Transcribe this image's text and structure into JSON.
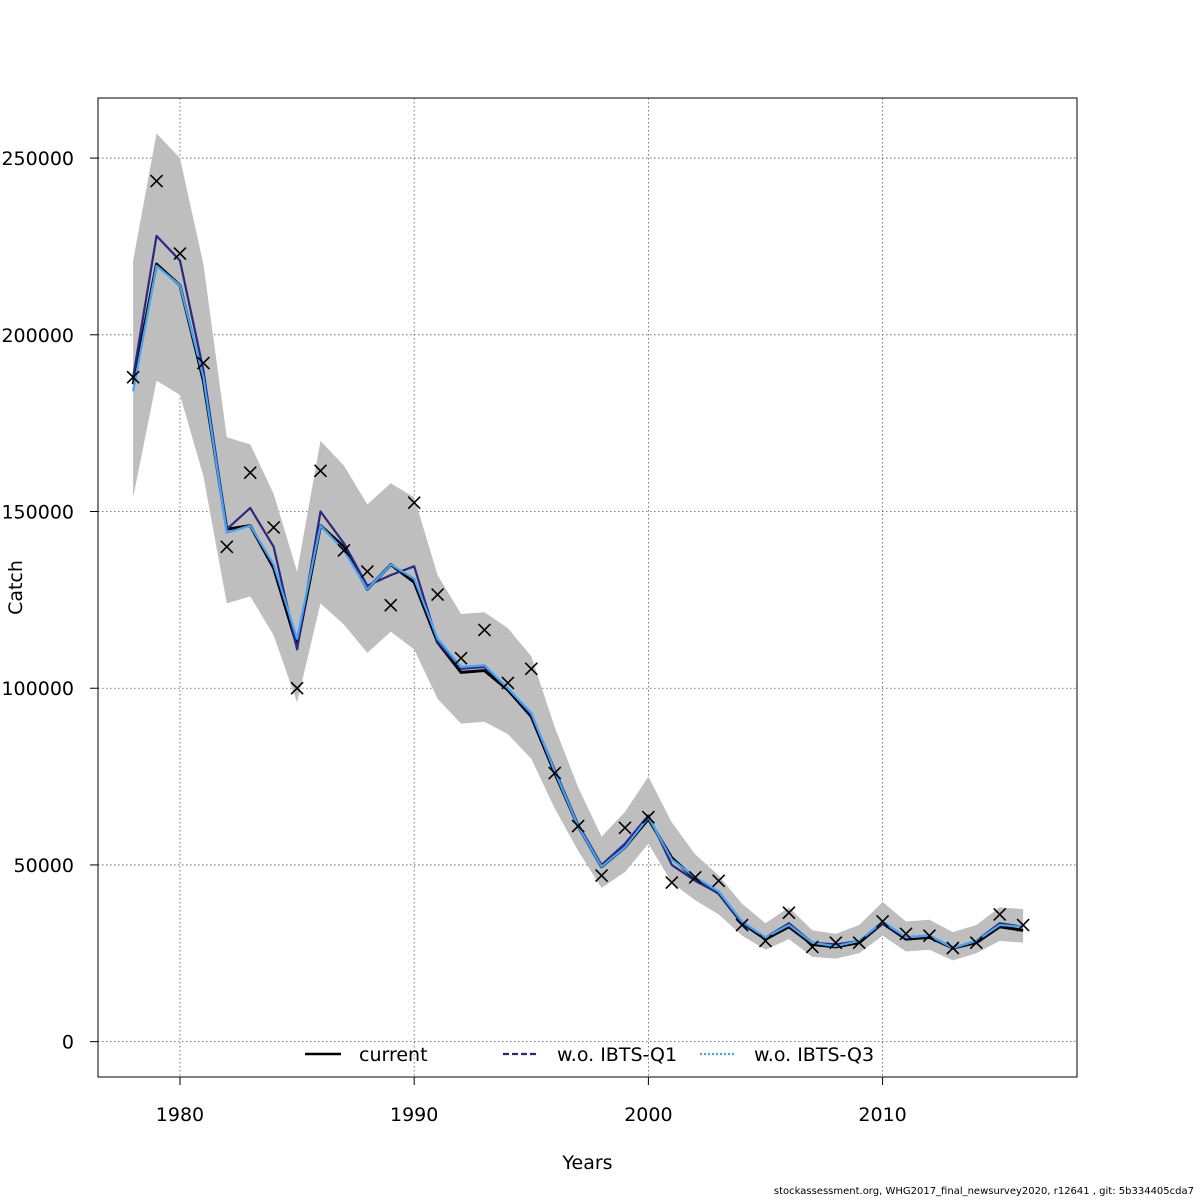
{
  "chart_data": {
    "type": "line",
    "xlabel": "Years",
    "ylabel": "Catch",
    "xlim": [
      1976.5,
      2018.3
    ],
    "ylim": [
      -10000,
      267000
    ],
    "x_ticks": [
      1980,
      1990,
      2000,
      2010
    ],
    "y_ticks": [
      0,
      50000,
      100000,
      150000,
      200000,
      250000
    ],
    "y_tick_labels": [
      "0",
      "50000",
      "100000",
      "150000",
      "200000",
      "250000"
    ],
    "grid": true,
    "legend_position": "bottom",
    "x": [
      1978,
      1979,
      1980,
      1981,
      1982,
      1983,
      1984,
      1985,
      1986,
      1987,
      1988,
      1989,
      1990,
      1991,
      1992,
      1993,
      1994,
      1995,
      1996,
      1997,
      1998,
      1999,
      2000,
      2001,
      2002,
      2003,
      2004,
      2005,
      2006,
      2007,
      2008,
      2009,
      2010,
      2011,
      2012,
      2013,
      2014,
      2015,
      2016
    ],
    "confidence_band": {
      "color": "#bebebe",
      "lower": [
        154000,
        187000,
        183000,
        160000,
        124000,
        126000,
        115000,
        96000,
        124000,
        118000,
        110000,
        116000,
        111000,
        97000,
        90000,
        90500,
        87000,
        80000,
        66000,
        54000,
        43500,
        48000,
        56000,
        45000,
        40000,
        36000,
        30000,
        26000,
        29000,
        24000,
        23500,
        25000,
        30000,
        25500,
        26000,
        23000,
        25000,
        28500,
        28000
      ],
      "upper": [
        221000,
        257000,
        250000,
        220000,
        171000,
        169000,
        155000,
        133000,
        170000,
        163000,
        152000,
        158000,
        154000,
        132000,
        121000,
        121500,
        117000,
        109000,
        89000,
        72000,
        58000,
        65000,
        75000,
        62000,
        53000,
        47000,
        39000,
        33500,
        38000,
        31500,
        30500,
        33000,
        39500,
        34000,
        34500,
        31000,
        33000,
        38000,
        37500
      ]
    },
    "series": [
      {
        "name": "current",
        "color": "#000000",
        "dash": "solid",
        "values": [
          186000,
          220000,
          214000,
          187000,
          145000,
          146000,
          134000,
          112000,
          146000,
          140000,
          128000,
          135000,
          130000,
          113000,
          104500,
          105000,
          99500,
          92000,
          76000,
          61000,
          49500,
          55000,
          63000,
          52000,
          46000,
          42000,
          33500,
          29000,
          32500,
          27500,
          26800,
          28000,
          33500,
          29000,
          29500,
          26500,
          28000,
          32500,
          31500
        ]
      },
      {
        "name": "w.o. IBTS-Q1",
        "color": "#2e2680",
        "dash": "dashed",
        "values": [
          188000,
          228000,
          221000,
          190000,
          145000,
          151000,
          140000,
          111000,
          150000,
          141000,
          129000,
          132000,
          134500,
          113000,
          105500,
          106000,
          100000,
          92500,
          77000,
          61500,
          50000,
          56000,
          64000,
          50000,
          45500,
          42000,
          33500,
          29500,
          33500,
          28000,
          27500,
          28500,
          33500,
          29500,
          30000,
          26500,
          28500,
          33500,
          32500
        ]
      },
      {
        "name": "w.o. IBTS-Q3",
        "color": "#42a5f5",
        "dash": "dotted",
        "values": [
          184000,
          219500,
          214000,
          188000,
          144000,
          146000,
          135000,
          114000,
          146000,
          139000,
          128000,
          135000,
          131000,
          114000,
          106000,
          106500,
          100000,
          93000,
          76500,
          61000,
          49500,
          55000,
          63500,
          51500,
          46500,
          42500,
          34000,
          29500,
          33000,
          28000,
          27000,
          28500,
          34000,
          29500,
          30000,
          26500,
          28500,
          33000,
          32500
        ]
      }
    ],
    "observations": {
      "marker": "x",
      "x": [
        1978,
        1979,
        1980,
        1981,
        1982,
        1983,
        1984,
        1985,
        1986,
        1987,
        1988,
        1989,
        1990,
        1991,
        1992,
        1993,
        1994,
        1995,
        1996,
        1997,
        1998,
        1999,
        2000,
        2001,
        2002,
        2003,
        2004,
        2005,
        2006,
        2007,
        2008,
        2009,
        2010,
        2011,
        2012,
        2013,
        2014,
        2015,
        2016
      ],
      "values": [
        188000,
        243500,
        223000,
        192000,
        140000,
        161000,
        145500,
        100000,
        161500,
        139000,
        133000,
        123500,
        152500,
        126500,
        108500,
        116500,
        101500,
        105500,
        76000,
        61000,
        47000,
        60500,
        63500,
        45000,
        46500,
        45500,
        33000,
        28500,
        36500,
        26800,
        28000,
        28000,
        34000,
        30500,
        30000,
        26500,
        28000,
        36000,
        33000
      ]
    }
  },
  "footer": {
    "note": "stockassessment.org, WHG2017_final_newsurvey2020, r12641 , git: 5b334405cda7"
  }
}
